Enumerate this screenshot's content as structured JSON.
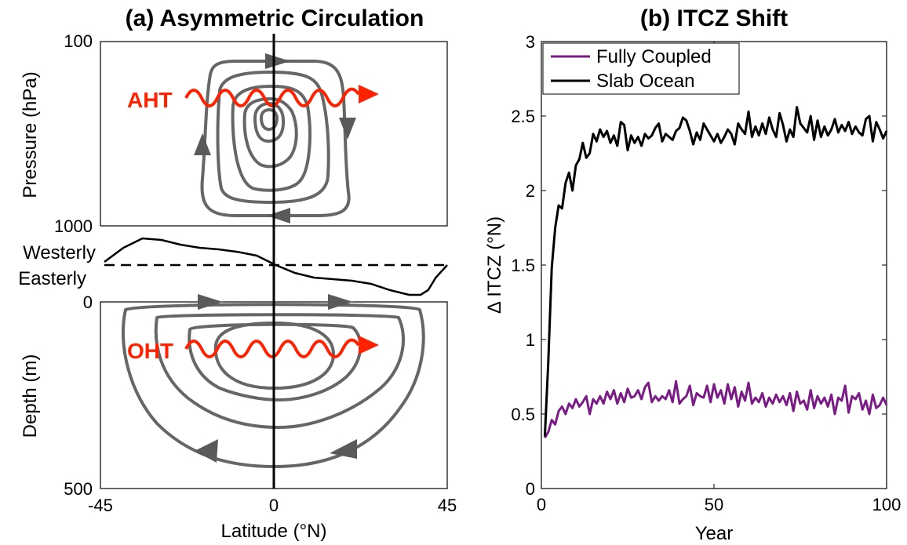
{
  "panel_a": {
    "title": "(a) Asymmetric Circulation",
    "atmosphere": {
      "ylabel": "Pressure (hPa)",
      "yticks": [
        "100",
        "1000"
      ],
      "flux_label": "AHT"
    },
    "wind": {
      "upper_label": "Westerly",
      "lower_label": "Easterly"
    },
    "ocean": {
      "ylabel": "Depth (m)",
      "yticks": [
        "0",
        "500"
      ],
      "flux_label": "OHT"
    },
    "xlabel": "Latitude (°N)",
    "xticks": [
      "-45",
      "0",
      "45"
    ]
  },
  "chart_data": [
    {
      "type": "line",
      "title": "(b) ITCZ Shift",
      "xlabel": "Year",
      "ylabel": "Δ ITCZ (°N)",
      "xlim": [
        0,
        100
      ],
      "ylim": [
        0,
        3
      ],
      "xticks": [
        "0",
        "50",
        "100"
      ],
      "yticks": [
        "0",
        "0.5",
        "1",
        "1.5",
        "2",
        "2.5",
        "3"
      ],
      "grid": false,
      "legend_position": "top-left",
      "colors": {
        "Fully Coupled": "#7b1c86",
        "Slab Ocean": "#000000"
      },
      "x": [
        1,
        2,
        3,
        4,
        5,
        6,
        7,
        8,
        9,
        10,
        11,
        12,
        13,
        14,
        15,
        16,
        17,
        18,
        19,
        20,
        21,
        22,
        23,
        24,
        25,
        26,
        27,
        28,
        29,
        30,
        31,
        32,
        33,
        34,
        35,
        36,
        37,
        38,
        39,
        40,
        41,
        42,
        43,
        44,
        45,
        46,
        47,
        48,
        49,
        50,
        51,
        52,
        53,
        54,
        55,
        56,
        57,
        58,
        59,
        60,
        61,
        62,
        63,
        64,
        65,
        66,
        67,
        68,
        69,
        70,
        71,
        72,
        73,
        74,
        75,
        76,
        77,
        78,
        79,
        80,
        81,
        82,
        83,
        84,
        85,
        86,
        87,
        88,
        89,
        90,
        91,
        92,
        93,
        94,
        95,
        96,
        97,
        98,
        99,
        100
      ],
      "series": [
        {
          "name": "Fully Coupled",
          "values": [
            0.34,
            0.38,
            0.46,
            0.43,
            0.52,
            0.55,
            0.5,
            0.57,
            0.54,
            0.6,
            0.55,
            0.58,
            0.62,
            0.5,
            0.6,
            0.57,
            0.62,
            0.57,
            0.65,
            0.6,
            0.66,
            0.57,
            0.64,
            0.58,
            0.67,
            0.61,
            0.62,
            0.66,
            0.6,
            0.68,
            0.71,
            0.58,
            0.62,
            0.59,
            0.62,
            0.6,
            0.66,
            0.58,
            0.72,
            0.57,
            0.6,
            0.62,
            0.69,
            0.56,
            0.64,
            0.62,
            0.61,
            0.69,
            0.58,
            0.7,
            0.61,
            0.66,
            0.57,
            0.7,
            0.6,
            0.68,
            0.55,
            0.65,
            0.59,
            0.71,
            0.57,
            0.61,
            0.58,
            0.64,
            0.55,
            0.61,
            0.57,
            0.63,
            0.58,
            0.62,
            0.56,
            0.64,
            0.52,
            0.65,
            0.57,
            0.59,
            0.53,
            0.66,
            0.54,
            0.62,
            0.57,
            0.61,
            0.55,
            0.63,
            0.5,
            0.61,
            0.59,
            0.69,
            0.51,
            0.62,
            0.6,
            0.64,
            0.53,
            0.59,
            0.5,
            0.63,
            0.54,
            0.56,
            0.61,
            0.56
          ]
        },
        {
          "name": "Slab Ocean",
          "values": [
            0.35,
            0.85,
            1.48,
            1.75,
            1.9,
            1.88,
            2.05,
            2.12,
            2.0,
            2.17,
            2.21,
            2.32,
            2.22,
            2.25,
            2.38,
            2.33,
            2.41,
            2.36,
            2.4,
            2.32,
            2.37,
            2.3,
            2.46,
            2.44,
            2.27,
            2.37,
            2.32,
            2.36,
            2.3,
            2.38,
            2.35,
            2.37,
            2.42,
            2.45,
            2.33,
            2.38,
            2.36,
            2.34,
            2.4,
            2.42,
            2.49,
            2.47,
            2.4,
            2.31,
            2.39,
            2.34,
            2.45,
            2.41,
            2.37,
            2.33,
            2.38,
            2.32,
            2.36,
            2.41,
            2.38,
            2.31,
            2.45,
            2.41,
            2.38,
            2.53,
            2.36,
            2.43,
            2.37,
            2.45,
            2.38,
            2.49,
            2.41,
            2.36,
            2.52,
            2.44,
            2.33,
            2.41,
            2.36,
            2.56,
            2.45,
            2.42,
            2.39,
            2.5,
            2.34,
            2.47,
            2.36,
            2.43,
            2.37,
            2.41,
            2.48,
            2.39,
            2.44,
            2.4,
            2.46,
            2.38,
            2.43,
            2.39,
            2.37,
            2.48,
            2.5,
            2.33,
            2.46,
            2.41,
            2.35,
            2.4
          ]
        }
      ]
    },
    {
      "type": "line",
      "title": "(a) Asymmetric Circulation",
      "xlabel": "Latitude (°N)",
      "xlim": [
        -45,
        45
      ],
      "xticks": [
        "-45",
        "0",
        "45"
      ],
      "series": [
        {
          "values_are": "schematic near-surface wind, positive = westerly",
          "x": [
            -45,
            -40,
            -35,
            -30,
            -25,
            -20,
            -15,
            -10,
            -5,
            0,
            5,
            10,
            15,
            20,
            25,
            30,
            35,
            38,
            40,
            42,
            45
          ],
          "values": [
            0.1,
            0.55,
            0.85,
            0.8,
            0.65,
            0.55,
            0.5,
            0.42,
            0.3,
            0.0,
            -0.25,
            -0.4,
            -0.45,
            -0.5,
            -0.6,
            -0.8,
            -0.95,
            -0.95,
            -0.8,
            -0.4,
            0.0
          ]
        }
      ]
    }
  ]
}
